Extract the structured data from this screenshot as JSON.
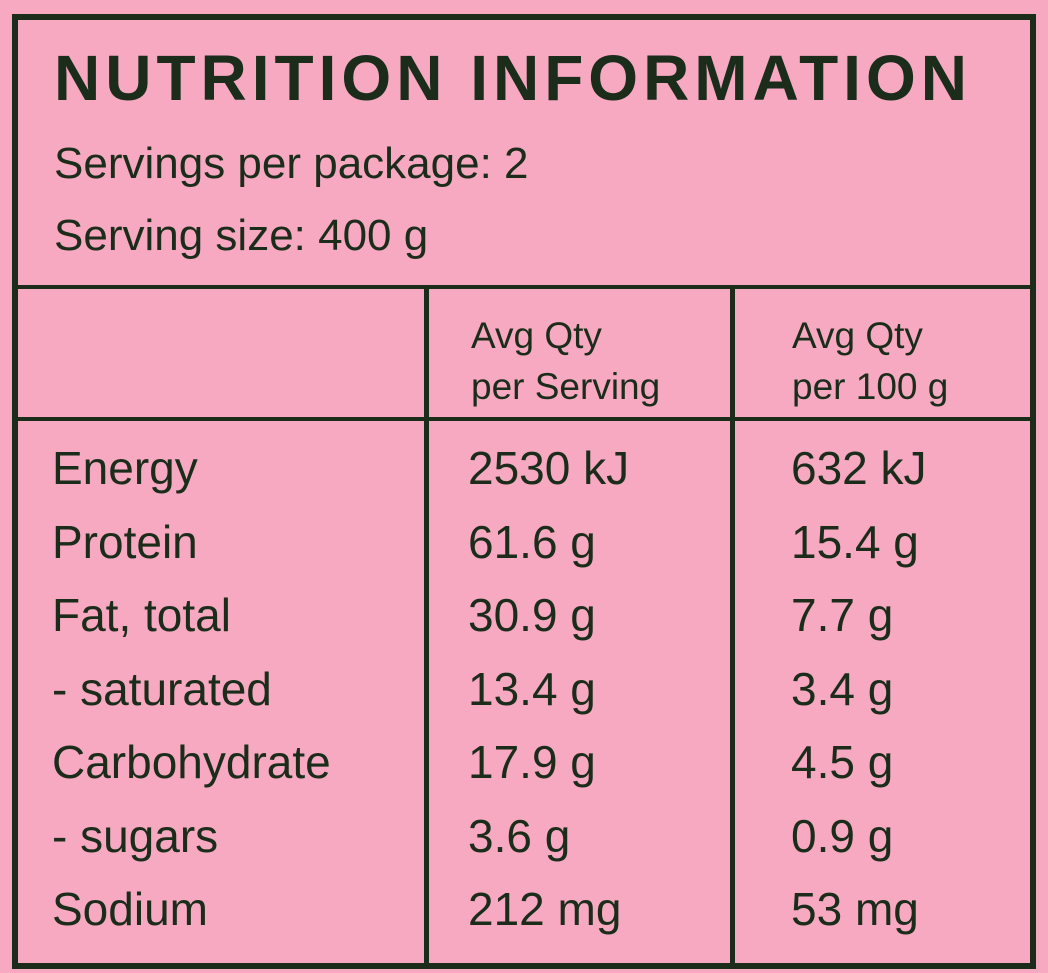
{
  "panel": {
    "title": "NUTRITION INFORMATION",
    "servings_per_package": "Servings per package: 2",
    "serving_size": "Serving size: 400 g"
  },
  "columns": {
    "per_serving": [
      "Avg Qty",
      "per Serving"
    ],
    "per_100g": [
      "Avg Qty",
      "per 100 g"
    ]
  },
  "rows": [
    {
      "name": "Energy",
      "per_serving": "2530 kJ",
      "per_100g": "632 kJ"
    },
    {
      "name": "Protein",
      "per_serving": "61.6 g",
      "per_100g": "15.4 g"
    },
    {
      "name": "Fat, total",
      "per_serving": "30.9 g",
      "per_100g": "7.7 g"
    },
    {
      "name": "- saturated",
      "per_serving": "13.4 g",
      "per_100g": "3.4 g"
    },
    {
      "name": "Carbohydrate",
      "per_serving": "17.9 g",
      "per_100g": "4.5 g"
    },
    {
      "name": "- sugars",
      "per_serving": "3.6 g",
      "per_100g": "0.9 g"
    },
    {
      "name": "Sodium",
      "per_serving": "212 mg",
      "per_100g": "53 mg"
    }
  ],
  "colors": {
    "background": "#f6a9c1",
    "ink": "#1b2c1b"
  }
}
